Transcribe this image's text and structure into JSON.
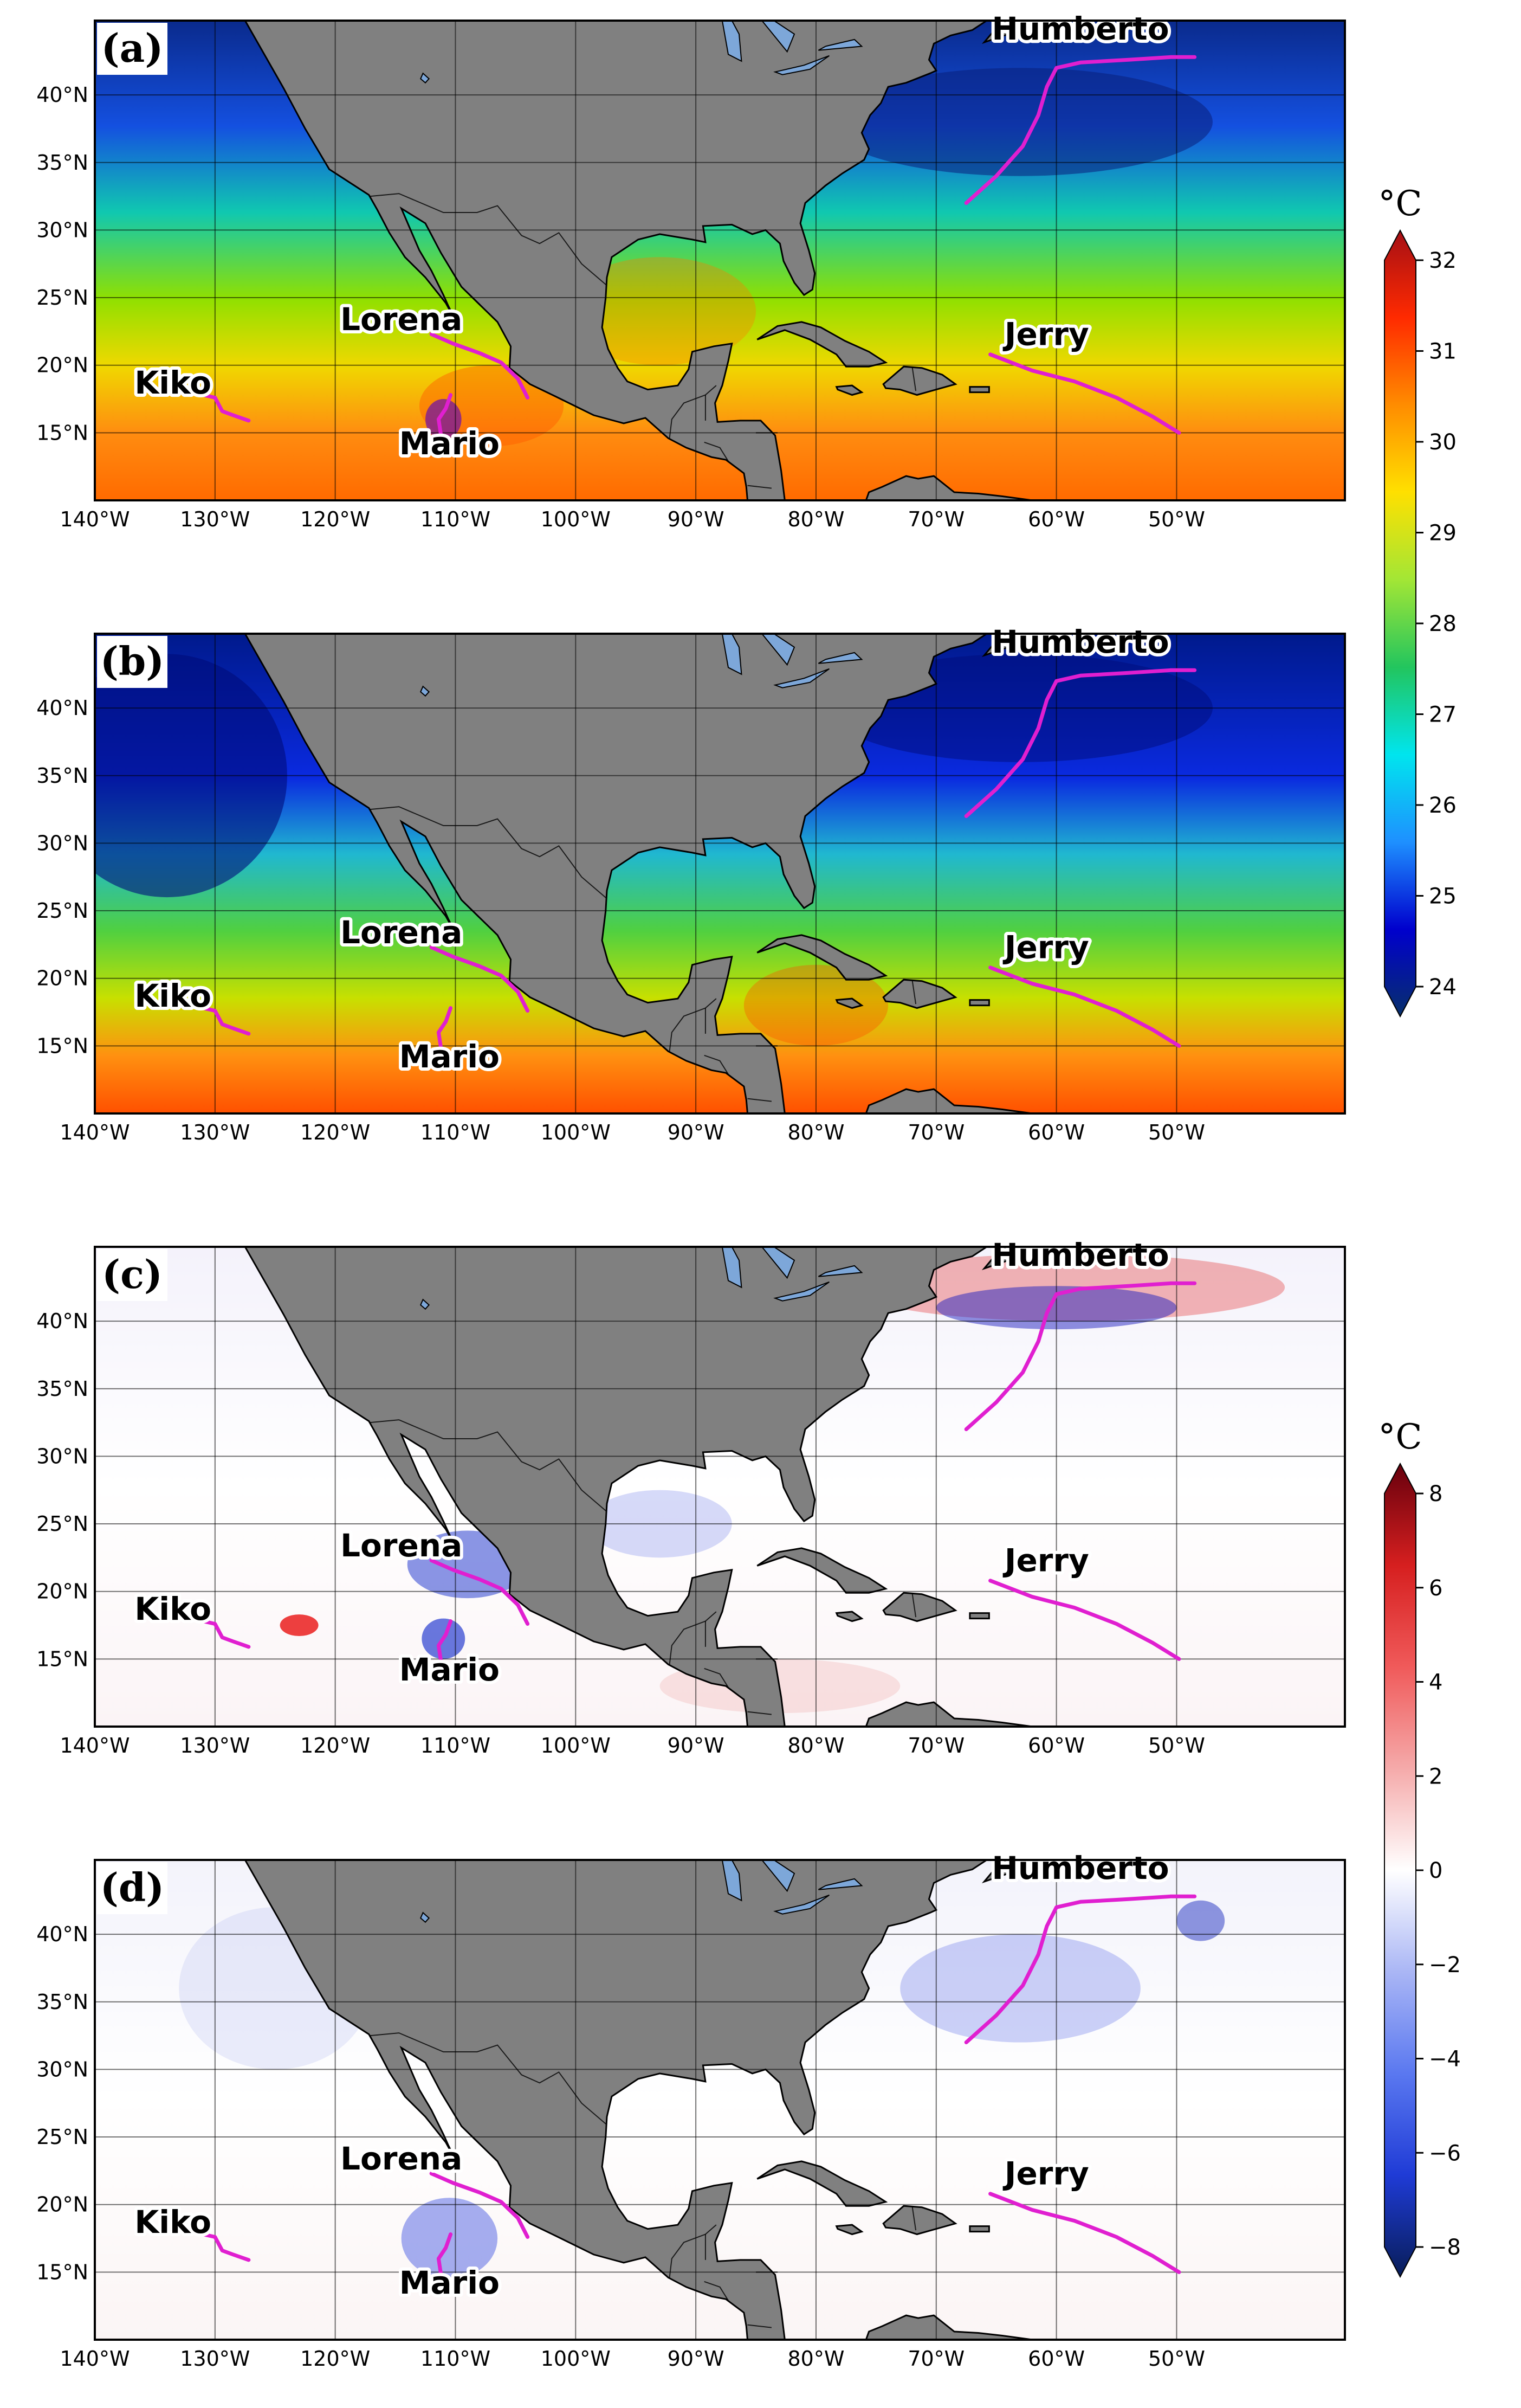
{
  "figure": {
    "longitude_ticks": [
      "140°W",
      "130°W",
      "120°W",
      "110°W",
      "100°W",
      "90°W",
      "80°W",
      "70°W",
      "60°W",
      "50°W"
    ],
    "latitude_ticks": [
      "40°N",
      "35°N",
      "30°N",
      "25°N",
      "20°N",
      "15°N"
    ],
    "panels": [
      {
        "label": "(a)",
        "kind": "sst",
        "gradient": "sst-a"
      },
      {
        "label": "(b)",
        "kind": "sst",
        "gradient": "sst-b"
      },
      {
        "label": "(c)",
        "kind": "diff",
        "gradient": "diff-c"
      },
      {
        "label": "(d)",
        "kind": "diff",
        "gradient": "diff-d"
      }
    ],
    "storms": [
      "Humberto",
      "Lorena",
      "Jerry",
      "Kiko",
      "Mario"
    ],
    "colorbars": [
      {
        "unit": "°C",
        "ticks": [
          "32",
          "31",
          "30",
          "29",
          "28",
          "27",
          "26",
          "25",
          "24"
        ],
        "min": 24,
        "max": 32,
        "colors": [
          "#08306b",
          "#0000cd",
          "#1e90ff",
          "#00e5ee",
          "#22c55e",
          "#a3e635",
          "#ffe000",
          "#ff8c00",
          "#ff2a00",
          "#a50f15"
        ]
      },
      {
        "unit": "°C",
        "ticks": [
          "8",
          "6",
          "4",
          "2",
          "0",
          "−2",
          "−4",
          "−6",
          "−8"
        ],
        "min": -8,
        "max": 8,
        "colors": [
          "#081d58",
          "#1f3bd6",
          "#5a78f0",
          "#aab6f5",
          "#ffffff",
          "#f5aaaa",
          "#f05a5a",
          "#d61f1f",
          "#67000d"
        ]
      }
    ],
    "colors": {
      "land": "#808080",
      "lakes": "#7da7d9",
      "track": "#e01fd0",
      "grid": "#000000"
    }
  }
}
